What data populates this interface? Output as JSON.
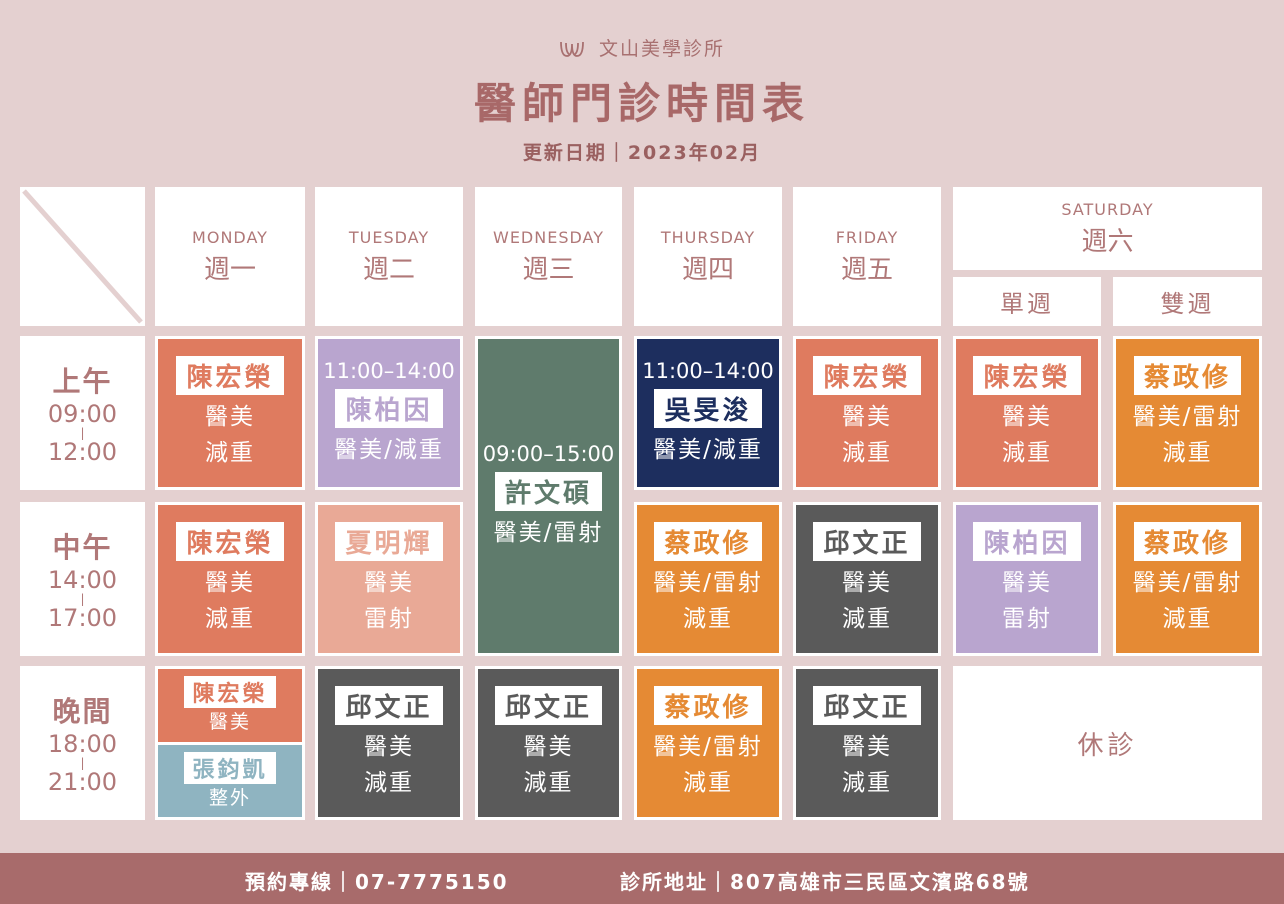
{
  "brand": {
    "name": "文山美學診所",
    "logo_icon": "lotus-w-icon"
  },
  "title": "醫師門診時間表",
  "updated": "更新日期｜2023年02月",
  "days": [
    {
      "en": "MONDAY",
      "zh": "週一"
    },
    {
      "en": "TUESDAY",
      "zh": "週二"
    },
    {
      "en": "WEDNESDAY",
      "zh": "週三"
    },
    {
      "en": "THURSDAY",
      "zh": "週四"
    },
    {
      "en": "FRIDAY",
      "zh": "週五"
    },
    {
      "en": "SATURDAY",
      "zh": "週六",
      "sub": [
        "單週",
        "雙週"
      ]
    }
  ],
  "slots": [
    {
      "name": "上午",
      "start": "09:00",
      "end": "12:00"
    },
    {
      "name": "中午",
      "start": "14:00",
      "end": "17:00"
    },
    {
      "name": "晚間",
      "start": "18:00",
      "end": "21:00"
    }
  ],
  "colors": {
    "coral": "#df7b5f",
    "lavender": "#b9a5cf",
    "green": "#5f7b6c",
    "navy": "#1d2e5e",
    "orange": "#e58a34",
    "charcoal": "#5a5a5a",
    "peach": "#e9a996",
    "teal": "#8fb4c1"
  },
  "schedule": [
    {
      "day": 0,
      "slot": 0,
      "color": "coral",
      "doctor": "陳宏榮",
      "services": [
        "醫美",
        "減重"
      ]
    },
    {
      "day": 1,
      "slot": 0,
      "color": "lavender",
      "time": "11:00–14:00",
      "doctor": "陳柏因",
      "services": [
        "醫美/減重"
      ]
    },
    {
      "day": 2,
      "slot": 0,
      "span": 2,
      "color": "green",
      "time": "09:00–15:00",
      "doctor": "許文碩",
      "services": [
        "醫美/雷射"
      ]
    },
    {
      "day": 3,
      "slot": 0,
      "color": "navy",
      "time": "11:00–14:00",
      "doctor": "吳旻浚",
      "services": [
        "醫美/減重"
      ]
    },
    {
      "day": 4,
      "slot": 0,
      "color": "coral",
      "doctor": "陳宏榮",
      "services": [
        "醫美",
        "減重"
      ]
    },
    {
      "day": 5,
      "slot": 0,
      "color": "coral",
      "doctor": "陳宏榮",
      "services": [
        "醫美",
        "減重"
      ]
    },
    {
      "day": 6,
      "slot": 0,
      "color": "orange",
      "doctor": "蔡政修",
      "services": [
        "醫美/雷射",
        "減重"
      ]
    },
    {
      "day": 0,
      "slot": 1,
      "color": "coral",
      "doctor": "陳宏榮",
      "services": [
        "醫美",
        "減重"
      ]
    },
    {
      "day": 1,
      "slot": 1,
      "color": "peach",
      "doctor": "夏明輝",
      "services": [
        "醫美",
        "雷射"
      ]
    },
    {
      "day": 3,
      "slot": 1,
      "color": "orange",
      "doctor": "蔡政修",
      "services": [
        "醫美/雷射",
        "減重"
      ]
    },
    {
      "day": 4,
      "slot": 1,
      "color": "charcoal",
      "doctor": "邱文正",
      "services": [
        "醫美",
        "減重"
      ]
    },
    {
      "day": 5,
      "slot": 1,
      "color": "lavender",
      "doctor": "陳柏因",
      "services": [
        "醫美",
        "雷射"
      ]
    },
    {
      "day": 6,
      "slot": 1,
      "color": "orange",
      "doctor": "蔡政修",
      "services": [
        "醫美/雷射",
        "減重"
      ]
    },
    {
      "day": 0,
      "slot": 2,
      "split": [
        {
          "color": "coral",
          "doctor": "陳宏榮",
          "services": [
            "醫美"
          ]
        },
        {
          "color": "teal",
          "doctor": "張鈞凱",
          "services": [
            "整外"
          ]
        }
      ]
    },
    {
      "day": 1,
      "slot": 2,
      "color": "charcoal",
      "doctor": "邱文正",
      "services": [
        "醫美",
        "減重"
      ]
    },
    {
      "day": 2,
      "slot": 2,
      "color": "charcoal",
      "doctor": "邱文正",
      "services": [
        "醫美",
        "減重"
      ]
    },
    {
      "day": 3,
      "slot": 2,
      "color": "orange",
      "doctor": "蔡政修",
      "services": [
        "醫美/雷射",
        "減重"
      ]
    },
    {
      "day": 4,
      "slot": 2,
      "color": "charcoal",
      "doctor": "邱文正",
      "services": [
        "醫美",
        "減重"
      ]
    }
  ],
  "saturday_evening": "休診",
  "footer": {
    "phone": "預約專線｜07-7775150",
    "address": "診所地址｜807高雄市三民區文濱路68號"
  }
}
